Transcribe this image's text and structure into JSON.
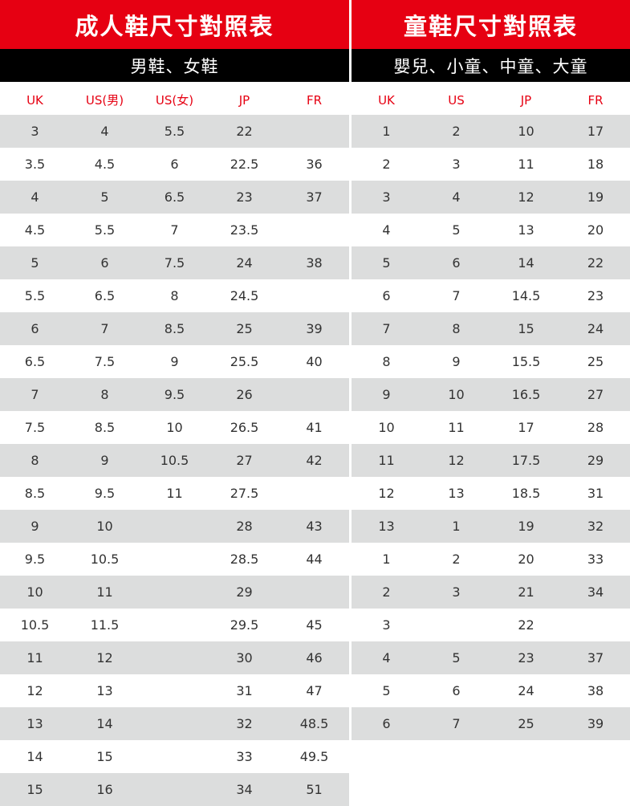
{
  "adult": {
    "title": "成人鞋尺寸對照表",
    "subtitle": "男鞋、女鞋",
    "headers": [
      "UK",
      "US(男)",
      "US(女)",
      "JP",
      "FR"
    ],
    "rows": [
      [
        "3",
        "4",
        "5.5",
        "22",
        ""
      ],
      [
        "3.5",
        "4.5",
        "6",
        "22.5",
        "36"
      ],
      [
        "4",
        "5",
        "6.5",
        "23",
        "37"
      ],
      [
        "4.5",
        "5.5",
        "7",
        "23.5",
        ""
      ],
      [
        "5",
        "6",
        "7.5",
        "24",
        "38"
      ],
      [
        "5.5",
        "6.5",
        "8",
        "24.5",
        ""
      ],
      [
        "6",
        "7",
        "8.5",
        "25",
        "39"
      ],
      [
        "6.5",
        "7.5",
        "9",
        "25.5",
        "40"
      ],
      [
        "7",
        "8",
        "9.5",
        "26",
        ""
      ],
      [
        "7.5",
        "8.5",
        "10",
        "26.5",
        "41"
      ],
      [
        "8",
        "9",
        "10.5",
        "27",
        "42"
      ],
      [
        "8.5",
        "9.5",
        "11",
        "27.5",
        ""
      ],
      [
        "9",
        "10",
        "",
        "28",
        "43"
      ],
      [
        "9.5",
        "10.5",
        "",
        "28.5",
        "44"
      ],
      [
        "10",
        "11",
        "",
        "29",
        ""
      ],
      [
        "10.5",
        "11.5",
        "",
        "29.5",
        "45"
      ],
      [
        "11",
        "12",
        "",
        "30",
        "46"
      ],
      [
        "12",
        "13",
        "",
        "31",
        "47"
      ],
      [
        "13",
        "14",
        "",
        "32",
        "48.5"
      ],
      [
        "14",
        "15",
        "",
        "33",
        "49.5"
      ],
      [
        "15",
        "16",
        "",
        "34",
        "51"
      ]
    ]
  },
  "kids": {
    "title": "童鞋尺寸對照表",
    "subtitle": "嬰兒、小童、中童、大童",
    "headers": [
      "UK",
      "US",
      "JP",
      "FR"
    ],
    "rows": [
      [
        "1",
        "2",
        "10",
        "17"
      ],
      [
        "2",
        "3",
        "11",
        "18"
      ],
      [
        "3",
        "4",
        "12",
        "19"
      ],
      [
        "4",
        "5",
        "13",
        "20"
      ],
      [
        "5",
        "6",
        "14",
        "22"
      ],
      [
        "6",
        "7",
        "14.5",
        "23"
      ],
      [
        "7",
        "8",
        "15",
        "24"
      ],
      [
        "8",
        "9",
        "15.5",
        "25"
      ],
      [
        "9",
        "10",
        "16.5",
        "27"
      ],
      [
        "10",
        "11",
        "17",
        "28"
      ],
      [
        "11",
        "12",
        "17.5",
        "29"
      ],
      [
        "12",
        "13",
        "18.5",
        "31"
      ],
      [
        "13",
        "1",
        "19",
        "32"
      ],
      [
        "1",
        "2",
        "20",
        "33"
      ],
      [
        "2",
        "3",
        "21",
        "34"
      ],
      [
        "3",
        "",
        "22",
        ""
      ],
      [
        "4",
        "5",
        "23",
        "37"
      ],
      [
        "5",
        "6",
        "24",
        "38"
      ],
      [
        "6",
        "7",
        "25",
        "39"
      ]
    ]
  },
  "colors": {
    "accent": "#e60012",
    "subheader": "#000000",
    "stripe": "#dcdddd"
  }
}
